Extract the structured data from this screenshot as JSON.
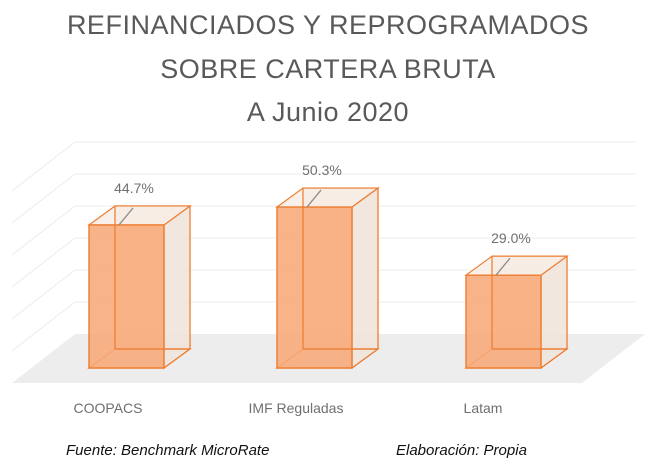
{
  "title_lines": [
    "REFINANCIADOS  Y  REPROGRAMADOS",
    "SOBRE  CARTERA  BRUTA",
    "A Junio 2020"
  ],
  "footer": {
    "source": "Fuente: Benchmark MicroRate",
    "author": "Elaboración: Propia"
  },
  "colors": {
    "bar_fill": "#f8a878",
    "bar_edge": "#ed7d31",
    "floor": "#ededed",
    "grid": "#ececec",
    "label": "#6f6f6f"
  },
  "chart_data": {
    "type": "bar",
    "style": "3d-clustered-column",
    "title": "REFINANCIADOS Y REPROGRAMADOS SOBRE CARTERA BRUTA A Junio 2020",
    "categories": [
      "COOPACS",
      "IMF Reguladas",
      "Latam"
    ],
    "values": [
      44.7,
      50.3,
      29.0
    ],
    "data_labels": [
      "44.7%",
      "50.3%",
      "29.0%"
    ],
    "unit": "%",
    "ylim": [
      0,
      60
    ],
    "grid_step": 10,
    "grid": true,
    "y_axis_labels_visible": false,
    "legend": "none",
    "xlabel": "",
    "ylabel": ""
  }
}
